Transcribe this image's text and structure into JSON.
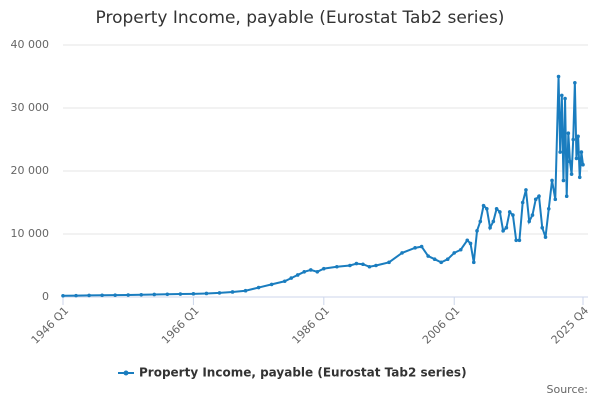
{
  "chart_data": {
    "type": "line",
    "title": "Property Income, payable (Eurostat Tab2 series)",
    "x": [
      1946,
      1948,
      1950,
      1952,
      1954,
      1956,
      1958,
      1960,
      1962,
      1964,
      1966,
      1968,
      1970,
      1972,
      1974,
      1976,
      1978,
      1980,
      1981,
      1982,
      1983,
      1984,
      1985,
      1986,
      1988,
      1990,
      1991,
      1992,
      1993,
      1994,
      1996,
      1998,
      2000,
      2001,
      2002,
      2003,
      2004,
      2005,
      2006,
      2007,
      2008,
      2008.5,
      2009,
      2009.5,
      2010,
      2010.5,
      2011,
      2011.5,
      2012,
      2012.5,
      2013,
      2013.5,
      2014,
      2014.5,
      2015,
      2015.5,
      2016,
      2016.5,
      2017,
      2017.5,
      2018,
      2018.5,
      2019,
      2019.5,
      2020,
      2020.5,
      2021,
      2021.5,
      2022,
      2022.25,
      2022.5,
      2022.75,
      2023,
      2023.25,
      2023.5,
      2023.75,
      2024,
      2024.25,
      2024.5,
      2024.75,
      2025,
      2025.25,
      2025.5,
      2025.75
    ],
    "series": [
      {
        "name": "Property Income, payable (Eurostat Tab2 series)",
        "color": "#1a7dbf",
        "values": [
          200,
          220,
          250,
          270,
          290,
          310,
          350,
          400,
          430,
          470,
          500,
          560,
          650,
          800,
          1000,
          1500,
          2000,
          2500,
          3000,
          3500,
          4000,
          4300,
          4000,
          4500,
          4800,
          5000,
          5300,
          5200,
          4800,
          5000,
          5500,
          7000,
          7800,
          8000,
          6500,
          6000,
          5500,
          6000,
          7000,
          7500,
          9000,
          8500,
          5500,
          10500,
          12000,
          14500,
          14000,
          11000,
          12000,
          14000,
          13500,
          10500,
          11000,
          13500,
          13000,
          9000,
          9000,
          15000,
          17000,
          12000,
          13000,
          15500,
          16000,
          11000,
          9500,
          14000,
          18500,
          15500,
          35000,
          23000,
          32000,
          18500,
          31500,
          16000,
          26000,
          21500,
          19500,
          25000,
          34000,
          22000,
          25500,
          19000,
          23000,
          21000
        ]
      }
    ],
    "xlim": [
      1946,
      2025.75
    ],
    "xticks": [
      {
        "value": 1946,
        "label": "1946 Q1"
      },
      {
        "value": 1966,
        "label": "1966 Q1"
      },
      {
        "value": 1986,
        "label": "1986 Q1"
      },
      {
        "value": 2006,
        "label": "2006 Q1"
      },
      {
        "value": 2025.75,
        "label": "2025 Q4"
      }
    ],
    "ylim": [
      0,
      40000
    ],
    "yticks": [
      0,
      {
        "value": 10000,
        "label": "10 000"
      },
      {
        "value": 20000,
        "label": "20 000"
      },
      {
        "value": 30000,
        "label": "30 000"
      },
      {
        "value": 40000,
        "label": "40 000"
      }
    ],
    "grid": true,
    "legend": "bottom",
    "source": "Source:"
  }
}
